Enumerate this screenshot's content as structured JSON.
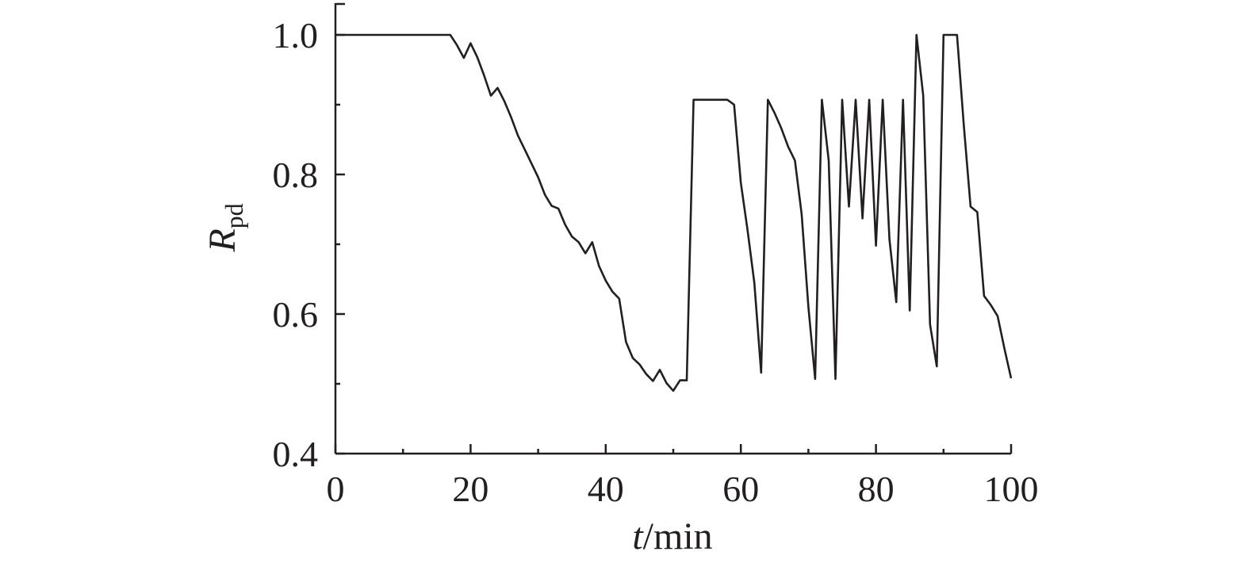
{
  "chart_data": {
    "type": "line",
    "title": "",
    "xlabel": {
      "italic": "t",
      "rest": "/min"
    },
    "ylabel": {
      "italic": "R",
      "subscript": "pd"
    },
    "xlim": [
      0,
      100
    ],
    "ylim": [
      0.4,
      1.05
    ],
    "xticks": [
      "0",
      "20",
      "40",
      "60",
      "80",
      "100"
    ],
    "yticks": [
      "0.4",
      "0.6",
      "0.8",
      "1.0"
    ],
    "grid": false,
    "legend": "none",
    "line_color": "#231f20",
    "series": [
      {
        "x": [
          0,
          17,
          18,
          19,
          20,
          21,
          22,
          23,
          24,
          25,
          26,
          27,
          28,
          29,
          30,
          31,
          32,
          33,
          34,
          35,
          36,
          37,
          38,
          39,
          40,
          41,
          42,
          43,
          44,
          45,
          46,
          47,
          48,
          49,
          50,
          51,
          52,
          53,
          54,
          55,
          56,
          57,
          58,
          59,
          60,
          61,
          62,
          63,
          64,
          65,
          66,
          67,
          68,
          69,
          70,
          71,
          72,
          73,
          74,
          75,
          76,
          77,
          78,
          79,
          80,
          81,
          82,
          83,
          84,
          85,
          86,
          87,
          88,
          89,
          90,
          91,
          92,
          93,
          94,
          95,
          96,
          97,
          98,
          99,
          100
        ],
        "y": [
          1.0,
          1.0,
          0.985,
          0.967,
          0.988,
          0.968,
          0.942,
          0.913,
          0.924,
          0.905,
          0.882,
          0.856,
          0.836,
          0.816,
          0.796,
          0.771,
          0.755,
          0.751,
          0.728,
          0.711,
          0.703,
          0.687,
          0.703,
          0.669,
          0.648,
          0.632,
          0.622,
          0.56,
          0.537,
          0.528,
          0.514,
          0.504,
          0.52,
          0.501,
          0.49,
          0.505,
          0.505,
          0.907,
          0.907,
          0.907,
          0.907,
          0.907,
          0.907,
          0.9,
          0.788,
          0.72,
          0.645,
          0.516,
          0.907,
          0.888,
          0.866,
          0.84,
          0.82,
          0.743,
          0.61,
          0.507,
          0.907,
          0.82,
          0.507,
          0.907,
          0.754,
          0.907,
          0.737,
          0.907,
          0.698,
          0.907,
          0.707,
          0.617,
          0.907,
          0.605,
          1.0,
          0.913,
          0.585,
          0.525,
          1.0,
          1.0,
          1.0,
          0.87,
          0.754,
          0.746,
          0.626,
          0.613,
          0.597,
          0.551,
          0.508
        ]
      }
    ]
  }
}
